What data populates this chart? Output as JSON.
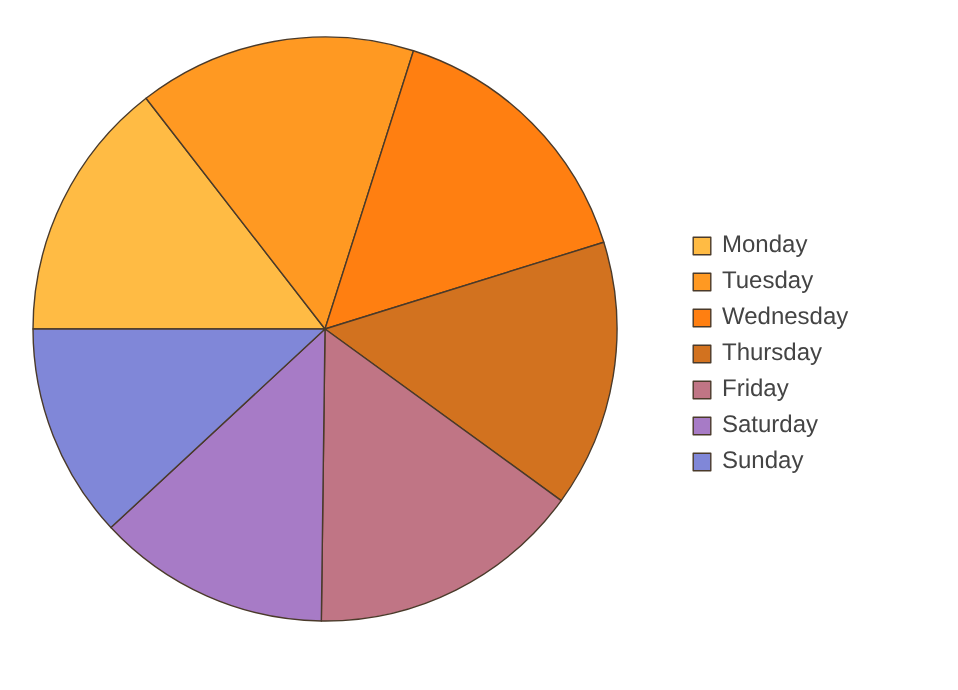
{
  "chart_data": {
    "type": "pie",
    "categories": [
      "Monday",
      "Tuesday",
      "Wednesday",
      "Thursday",
      "Friday",
      "Saturday",
      "Sunday"
    ],
    "values": [
      14.5,
      15.4,
      15.3,
      14.8,
      15.2,
      12.9,
      11.9
    ],
    "colors": [
      "#ffbb44",
      "#ff9922",
      "#ff7f11",
      "#d2721f",
      "#c07585",
      "#a77bc6",
      "#8087d8"
    ],
    "legend": "right"
  }
}
